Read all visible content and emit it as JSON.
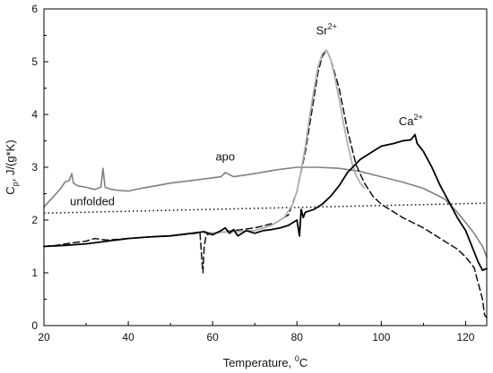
{
  "chart_data": {
    "type": "line",
    "title": "",
    "xlabel": {
      "pre": "Temperature, ",
      "sup": "0",
      "post": "C"
    },
    "ylabel": {
      "pre": "C",
      "sub": "p",
      "post": ", J/(g*K)"
    },
    "xlim": [
      20,
      125
    ],
    "ylim": [
      0,
      6
    ],
    "x_ticks": [
      20,
      40,
      60,
      80,
      100,
      120
    ],
    "y_ticks": [
      0,
      1,
      2,
      3,
      4,
      5,
      6
    ],
    "grid": false,
    "legend": "none",
    "annotations": [
      {
        "text": "apo",
        "sup": "",
        "x": 63,
        "y": 3.13
      },
      {
        "text": "unfolded",
        "sup": "",
        "x": 31.5,
        "y": 2.28
      },
      {
        "text": "Sr",
        "sup": "2+",
        "x": 87,
        "y": 5.52
      },
      {
        "text": "Ca",
        "sup": "2+",
        "x": 107,
        "y": 3.8
      }
    ],
    "series": [
      {
        "style": "solid",
        "color": "#808080",
        "width": 1.6,
        "x": [
          20,
          22,
          24,
          25,
          26,
          26.6,
          27,
          28,
          30,
          32,
          33.5,
          34,
          34.5,
          36,
          38,
          40,
          43,
          46,
          50,
          55,
          60,
          62,
          63,
          65,
          70,
          75,
          80,
          85,
          90,
          95,
          100,
          105,
          110,
          115,
          118,
          120,
          122,
          124,
          125
        ],
        "y": [
          2.25,
          2.42,
          2.6,
          2.72,
          2.75,
          2.88,
          2.7,
          2.65,
          2.62,
          2.58,
          2.62,
          2.98,
          2.62,
          2.58,
          2.56,
          2.55,
          2.6,
          2.64,
          2.7,
          2.75,
          2.8,
          2.82,
          2.9,
          2.82,
          2.88,
          2.95,
          3.0,
          3.0,
          2.98,
          2.92,
          2.82,
          2.72,
          2.6,
          2.4,
          2.15,
          1.95,
          1.75,
          1.5,
          1.3
        ]
      },
      {
        "style": "dotted",
        "color": "#111111",
        "width": 1.5,
        "x": [
          20,
          125
        ],
        "y": [
          2.13,
          2.32
        ]
      },
      {
        "style": "dashed",
        "color": "#111111",
        "width": 1.5,
        "x": [
          20,
          23,
          26,
          28,
          30,
          32,
          35,
          40,
          45,
          50,
          55,
          57,
          57.4,
          57.7,
          58,
          58.5,
          60,
          65,
          70,
          75,
          78,
          80,
          82,
          84,
          85,
          86,
          87,
          88,
          90,
          92,
          94,
          96,
          98,
          100,
          105,
          110,
          115,
          118,
          120,
          122,
          123,
          124,
          124.5,
          125
        ],
        "y": [
          1.5,
          1.52,
          1.56,
          1.58,
          1.6,
          1.65,
          1.62,
          1.65,
          1.68,
          1.7,
          1.74,
          1.76,
          1.3,
          1.0,
          1.5,
          1.72,
          1.75,
          1.8,
          1.85,
          1.95,
          2.1,
          2.55,
          3.3,
          4.3,
          4.8,
          5.1,
          5.22,
          5.05,
          4.5,
          3.7,
          3.05,
          2.7,
          2.45,
          2.3,
          2.05,
          1.85,
          1.6,
          1.45,
          1.3,
          1.1,
          0.8,
          0.5,
          0.2,
          0.15
        ]
      },
      {
        "style": "solid",
        "color": "#b0b0b0",
        "width": 1.8,
        "x": [
          58,
          62,
          66,
          70,
          74,
          77,
          79,
          80,
          81,
          82,
          83,
          84,
          85,
          86,
          87,
          88,
          89,
          90,
          91,
          92,
          93,
          94,
          95,
          96
        ],
        "y": [
          1.75,
          1.77,
          1.78,
          1.8,
          1.9,
          2.05,
          2.3,
          2.55,
          2.95,
          3.4,
          3.95,
          4.45,
          4.9,
          5.15,
          5.22,
          5.05,
          4.7,
          4.3,
          3.85,
          3.45,
          3.1,
          2.85,
          2.7,
          2.6
        ]
      },
      {
        "style": "solid",
        "color": "#000000",
        "width": 1.8,
        "x": [
          20,
          25,
          30,
          35,
          40,
          45,
          50,
          55,
          58,
          60,
          62,
          63,
          64,
          65,
          66,
          68,
          70,
          72,
          74,
          76,
          78,
          80,
          80.6,
          81,
          81.5,
          82,
          84,
          86,
          88,
          90,
          92,
          95,
          98,
          100,
          103,
          105,
          107,
          108,
          108.5,
          110,
          112,
          114,
          116,
          118,
          120,
          121,
          122,
          123,
          124,
          125
        ],
        "y": [
          1.5,
          1.52,
          1.55,
          1.6,
          1.65,
          1.68,
          1.7,
          1.75,
          1.78,
          1.72,
          1.8,
          1.85,
          1.75,
          1.82,
          1.7,
          1.8,
          1.75,
          1.8,
          1.82,
          1.85,
          1.9,
          2.0,
          1.7,
          2.2,
          2.05,
          2.15,
          2.2,
          2.3,
          2.45,
          2.65,
          2.9,
          3.15,
          3.3,
          3.4,
          3.45,
          3.5,
          3.52,
          3.62,
          3.45,
          3.3,
          3.0,
          2.65,
          2.35,
          2.05,
          1.8,
          1.6,
          1.4,
          1.2,
          1.05,
          1.08
        ]
      }
    ]
  }
}
